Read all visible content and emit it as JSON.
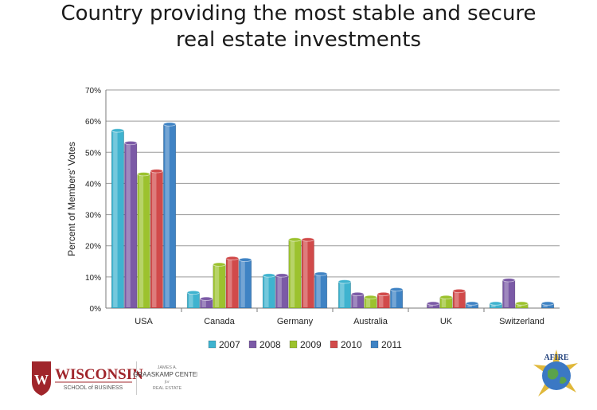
{
  "chart_data": {
    "type": "bar",
    "title": [
      "Country providing the most stable and secure",
      "real estate investments"
    ],
    "ylabel": "Percent of Members' Votes",
    "xlabel": "",
    "ylim": [
      0,
      70
    ],
    "yticks": [
      "0%",
      "10%",
      "20%",
      "30%",
      "40%",
      "50%",
      "60%",
      "70%"
    ],
    "grid": true,
    "legend_position": "bottom",
    "categories": [
      "USA",
      "Canada",
      "Germany",
      "Australia",
      "UK",
      "Switzerland"
    ],
    "series": [
      {
        "name": "2007",
        "color": "#3fb3cf",
        "values": [
          57,
          5,
          10.5,
          8.5,
          0,
          1.5
        ]
      },
      {
        "name": "2008",
        "color": "#7b5aa6",
        "values": [
          53,
          3,
          10.5,
          4.5,
          1.5,
          9
        ]
      },
      {
        "name": "2009",
        "color": "#9cc22e",
        "values": [
          43,
          14,
          22,
          3.5,
          3.5,
          1.5
        ]
      },
      {
        "name": "2010",
        "color": "#d14a4a",
        "values": [
          44,
          16,
          22,
          4.5,
          5.5,
          0
        ]
      },
      {
        "name": "2011",
        "color": "#3f83c4",
        "values": [
          59,
          15.5,
          11,
          6,
          1.5,
          1.5
        ]
      }
    ]
  },
  "logos": {
    "uw_name": "WISCONSIN",
    "uw_school": "SCHOOL of BUSINESS",
    "graaskamp_line1": "JAMES A.",
    "graaskamp_line2": "GRAASKAMP CENTER",
    "graaskamp_line3": "for",
    "graaskamp_line4": "REAL ESTATE",
    "afire": "AFIRE"
  }
}
